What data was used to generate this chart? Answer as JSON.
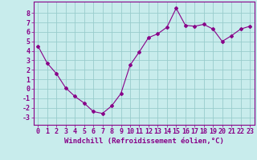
{
  "x": [
    0,
    1,
    2,
    3,
    4,
    5,
    6,
    7,
    8,
    9,
    10,
    11,
    12,
    13,
    14,
    15,
    16,
    17,
    18,
    19,
    20,
    21,
    22,
    23
  ],
  "y": [
    4.5,
    2.7,
    1.6,
    0.1,
    -0.8,
    -1.5,
    -2.4,
    -2.6,
    -1.8,
    -0.5,
    2.5,
    3.9,
    5.4,
    5.8,
    6.5,
    8.5,
    6.7,
    6.6,
    6.8,
    6.3,
    5.0,
    5.6,
    6.3,
    6.6
  ],
  "line_color": "#880088",
  "marker": "D",
  "marker_size": 2,
  "bg_color": "#c8ecec",
  "grid_color": "#99cccc",
  "xlabel": "Windchill (Refroidissement éolien,°C)",
  "xlabel_color": "#880088",
  "tick_color": "#880088",
  "ylabel_ticks": [
    -3,
    -2,
    -1,
    0,
    1,
    2,
    3,
    4,
    5,
    6,
    7,
    8
  ],
  "xlim": [
    -0.5,
    23.5
  ],
  "ylim": [
    -3.8,
    9.2
  ],
  "axis_color": "#880088",
  "label_fontsize": 6.5,
  "tick_fontsize": 6
}
